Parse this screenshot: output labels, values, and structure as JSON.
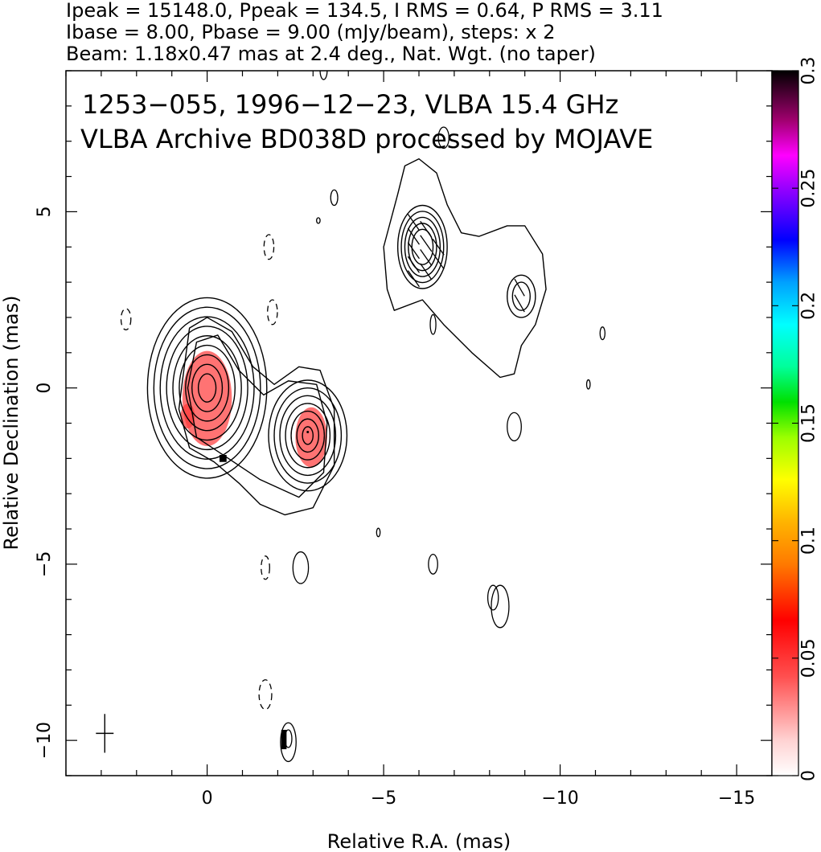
{
  "header": {
    "line1": "Ipeak = 15148.0, Ppeak = 134.5, I RMS = 0.64, P RMS = 3.11",
    "line2": "Ibase = 8.00, Pbase = 9.00 (mJy/beam), steps: x 2",
    "line3": "Beam: 1.18x0.47 mas at 2.4 deg., Nat. Wgt. (no taper)"
  },
  "chart_data": {
    "type": "contour",
    "title_line1": "1253−055, 1996−12−23, VLBA 15.4 GHz",
    "title_line2": "VLBA Archive BD038D processed by MOJAVE",
    "xlabel": "Relative R.A. (mas)",
    "ylabel": "Relative Declination (mas)",
    "xlim": [
      4,
      -16
    ],
    "ylim": [
      -11,
      9
    ],
    "x_ticks": [
      0,
      -5,
      -10,
      -15
    ],
    "x_tick_labels": [
      "0",
      "−5",
      "−10",
      "−15"
    ],
    "y_ticks": [
      -10,
      -5,
      0,
      5
    ],
    "y_tick_labels": [
      "−10",
      "−5",
      "0",
      "5"
    ],
    "colorbar": {
      "range": [
        0,
        0.3
      ],
      "ticks": [
        0,
        0.05,
        0.1,
        0.15,
        0.2,
        0.25,
        0.3
      ],
      "tick_labels": [
        "0",
        "0.05",
        "0.1",
        "0.15",
        "0.2",
        "0.25",
        "0.3"
      ]
    },
    "components": [
      {
        "name": "core",
        "x": 0.0,
        "y": 0.0,
        "levels": 9,
        "rx0": 0.25,
        "ry0": 0.4,
        "drx": 0.18,
        "dry": 0.27
      },
      {
        "name": "jet-knot",
        "x": -2.85,
        "y": -1.35,
        "levels": 7,
        "rx0": 0.15,
        "ry0": 0.25,
        "drx": 0.16,
        "dry": 0.22
      },
      {
        "name": "north-knot",
        "x": -6.1,
        "y": 4.0,
        "levels": 5,
        "rx0": 0.3,
        "ry0": 0.5,
        "drx": 0.1,
        "dry": 0.17
      },
      {
        "name": "east-knot",
        "x": -8.9,
        "y": 2.6,
        "levels": 2,
        "rx0": 0.25,
        "ry0": 0.4,
        "drx": 0.15,
        "dry": 0.2
      }
    ],
    "polarization_patches": [
      {
        "x": 0.0,
        "y": -0.3,
        "rx": 0.7,
        "ry": 1.35,
        "fraction": 0.04
      },
      {
        "x": -2.95,
        "y": -1.4,
        "rx": 0.45,
        "ry": 0.85,
        "fraction": 0.04
      },
      {
        "x": 0.55,
        "y": -0.8,
        "rx": 0.2,
        "ry": 0.35,
        "fraction": 0.06
      }
    ],
    "evpa_sticks": [
      {
        "x": -5.85,
        "y": 3.1,
        "angle": 35
      },
      {
        "x": -5.85,
        "y": 3.5,
        "angle": 35
      },
      {
        "x": -5.85,
        "y": 3.9,
        "angle": 35
      },
      {
        "x": -5.85,
        "y": 4.3,
        "angle": 35
      },
      {
        "x": -5.85,
        "y": 4.7,
        "angle": 35
      },
      {
        "x": -6.2,
        "y": 3.3,
        "angle": 35
      },
      {
        "x": -6.2,
        "y": 3.7,
        "angle": 35
      },
      {
        "x": -6.2,
        "y": 4.1,
        "angle": 35
      },
      {
        "x": -6.2,
        "y": 4.5,
        "angle": 35
      },
      {
        "x": -6.55,
        "y": 3.6,
        "angle": 35
      },
      {
        "x": -6.55,
        "y": 4.0,
        "angle": 35
      },
      {
        "x": -8.85,
        "y": 2.4,
        "angle": 30
      },
      {
        "x": -8.85,
        "y": 2.85,
        "angle": 30
      }
    ],
    "isolated_contours": [
      {
        "x": -3.3,
        "y": 9.0,
        "rx": 0.1,
        "ry": 0.25,
        "dashed": false
      },
      {
        "x": -6.7,
        "y": 7.1,
        "rx": 0.15,
        "ry": 0.3,
        "dashed": false
      },
      {
        "x": -3.6,
        "y": 5.4,
        "rx": 0.1,
        "ry": 0.22,
        "dashed": false
      },
      {
        "x": -3.15,
        "y": 4.75,
        "rx": 0.05,
        "ry": 0.08,
        "dashed": false
      },
      {
        "x": -1.75,
        "y": 4.0,
        "rx": 0.14,
        "ry": 0.35,
        "dashed": true
      },
      {
        "x": -1.85,
        "y": 2.15,
        "rx": 0.14,
        "ry": 0.35,
        "dashed": true
      },
      {
        "x": 2.3,
        "y": 1.95,
        "rx": 0.14,
        "ry": 0.3,
        "dashed": true
      },
      {
        "x": -6.4,
        "y": 1.8,
        "rx": 0.08,
        "ry": 0.28,
        "dashed": false
      },
      {
        "x": -11.2,
        "y": 1.55,
        "rx": 0.07,
        "ry": 0.18,
        "dashed": false
      },
      {
        "x": -10.8,
        "y": 0.1,
        "rx": 0.05,
        "ry": 0.13,
        "dashed": false
      },
      {
        "x": -8.7,
        "y": -1.1,
        "rx": 0.2,
        "ry": 0.4,
        "dashed": false
      },
      {
        "x": -4.85,
        "y": -4.1,
        "rx": 0.05,
        "ry": 0.12,
        "dashed": false
      },
      {
        "x": -1.65,
        "y": -5.1,
        "rx": 0.12,
        "ry": 0.33,
        "dashed": true
      },
      {
        "x": -2.65,
        "y": -5.1,
        "rx": 0.22,
        "ry": 0.45,
        "dashed": false
      },
      {
        "x": -6.4,
        "y": -5.0,
        "rx": 0.13,
        "ry": 0.28,
        "dashed": false
      },
      {
        "x": -8.1,
        "y": -5.95,
        "rx": 0.15,
        "ry": 0.35,
        "dashed": false
      },
      {
        "x": -8.3,
        "y": -6.2,
        "rx": 0.25,
        "ry": 0.6,
        "dashed": false
      },
      {
        "x": -1.65,
        "y": -8.7,
        "rx": 0.18,
        "ry": 0.42,
        "dashed": true
      },
      {
        "x": -2.3,
        "y": -10.05,
        "rx": 0.22,
        "ry": 0.55,
        "dashed": false
      },
      {
        "x": -2.3,
        "y": -9.95,
        "rx": 0.1,
        "ry": 0.25,
        "dashed": false
      }
    ],
    "beam_marker": {
      "x": 2.9,
      "y": -9.8
    }
  },
  "colors": {
    "contour": "#000000",
    "polarization": "#ff3b3b"
  }
}
